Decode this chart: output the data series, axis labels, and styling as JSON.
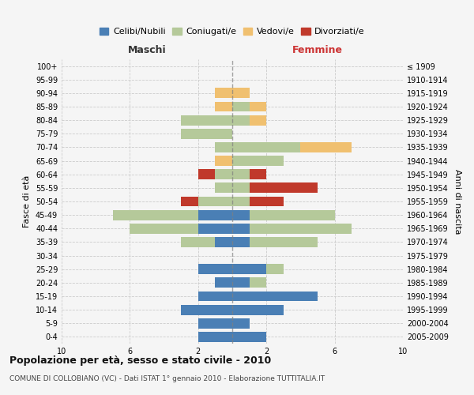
{
  "age_groups": [
    "100+",
    "95-99",
    "90-94",
    "85-89",
    "80-84",
    "75-79",
    "70-74",
    "65-69",
    "60-64",
    "55-59",
    "50-54",
    "45-49",
    "40-44",
    "35-39",
    "30-34",
    "25-29",
    "20-24",
    "15-19",
    "10-14",
    "5-9",
    "0-4"
  ],
  "birth_years": [
    "≤ 1909",
    "1910-1914",
    "1915-1919",
    "1920-1924",
    "1925-1929",
    "1930-1934",
    "1935-1939",
    "1940-1944",
    "1945-1949",
    "1950-1954",
    "1955-1959",
    "1960-1964",
    "1965-1969",
    "1970-1974",
    "1975-1979",
    "1980-1984",
    "1985-1989",
    "1990-1994",
    "1995-1999",
    "2000-2004",
    "2005-2009"
  ],
  "male": {
    "celibi": [
      0,
      0,
      0,
      0,
      0,
      0,
      0,
      0,
      0,
      0,
      0,
      2,
      2,
      1,
      0,
      2,
      1,
      2,
      3,
      2,
      2
    ],
    "coniugati": [
      0,
      0,
      0,
      0,
      3,
      3,
      1,
      0,
      1,
      1,
      2,
      5,
      4,
      2,
      0,
      0,
      0,
      0,
      0,
      0,
      0
    ],
    "vedovi": [
      0,
      0,
      1,
      1,
      0,
      0,
      0,
      1,
      0,
      0,
      0,
      0,
      0,
      0,
      0,
      0,
      0,
      0,
      0,
      0,
      0
    ],
    "divorziati": [
      0,
      0,
      0,
      0,
      0,
      0,
      0,
      0,
      1,
      0,
      1,
      0,
      0,
      0,
      0,
      0,
      0,
      0,
      0,
      0,
      0
    ]
  },
  "female": {
    "nubili": [
      0,
      0,
      0,
      0,
      0,
      0,
      0,
      0,
      0,
      0,
      0,
      1,
      1,
      1,
      0,
      2,
      1,
      5,
      3,
      1,
      2
    ],
    "coniugate": [
      0,
      0,
      0,
      1,
      1,
      0,
      4,
      3,
      1,
      1,
      1,
      5,
      6,
      4,
      0,
      1,
      1,
      0,
      0,
      0,
      0
    ],
    "vedove": [
      0,
      0,
      1,
      1,
      1,
      0,
      3,
      0,
      0,
      0,
      0,
      0,
      0,
      0,
      0,
      0,
      0,
      0,
      0,
      0,
      0
    ],
    "divorziate": [
      0,
      0,
      0,
      0,
      0,
      0,
      0,
      0,
      1,
      4,
      2,
      0,
      0,
      0,
      0,
      0,
      0,
      0,
      0,
      0,
      0
    ]
  },
  "colors": {
    "celibi_nubili": "#4a7fb5",
    "coniugati": "#b5c99a",
    "vedovi": "#f0c070",
    "divorziati": "#c0392b"
  },
  "title": "Popolazione per età, sesso e stato civile - 2010",
  "subtitle": "COMUNE DI COLLOBIANO (VC) - Dati ISTAT 1° gennaio 2010 - Elaborazione TUTTITALIA.IT",
  "xlabel_left": "Maschi",
  "xlabel_right": "Femmine",
  "ylabel_left": "Fasce di età",
  "ylabel_right": "Anni di nascita",
  "xlim": 10,
  "xticks": [
    -10,
    -6,
    -2,
    2,
    6,
    10
  ],
  "legend_labels": [
    "Celibi/Nubili",
    "Coniugati/e",
    "Vedovi/e",
    "Divorziati/e"
  ],
  "background_color": "#f5f5f5",
  "grid_color": "#cccccc"
}
